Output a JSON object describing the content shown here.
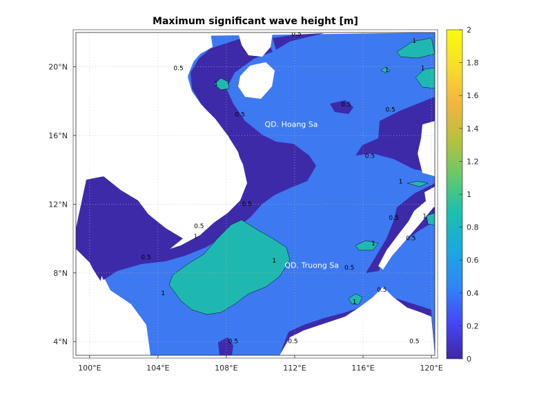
{
  "chart_data": {
    "type": "heatmap",
    "title": "Maximum significant wave height [m]",
    "xlabel": "",
    "ylabel": "",
    "xlim": [
      99.2,
      120.2
    ],
    "ylim": [
      3.2,
      22.0
    ],
    "x_ticks": [
      {
        "value": 100,
        "label": "100°E"
      },
      {
        "value": 104,
        "label": "104°E"
      },
      {
        "value": 108,
        "label": "108°E"
      },
      {
        "value": 112,
        "label": "112°E"
      },
      {
        "value": 116,
        "label": "116°E"
      },
      {
        "value": 120,
        "label": "120°E"
      }
    ],
    "y_ticks": [
      {
        "value": 4,
        "label": "4°N"
      },
      {
        "value": 8,
        "label": "8°N"
      },
      {
        "value": 12,
        "label": "12°N"
      },
      {
        "value": 16,
        "label": "16°N"
      },
      {
        "value": 20,
        "label": "20°N"
      }
    ],
    "grid": true,
    "colorbar": {
      "range": [
        0,
        2
      ],
      "ticks": [
        "0",
        "0.2",
        "0.4",
        "0.6",
        "0.8",
        "1",
        "1.2",
        "1.4",
        "1.6",
        "1.8",
        "2"
      ],
      "colors": [
        "#3e26a8",
        "#4547f9",
        "#2e87f7",
        "#1aa9df",
        "#1bbfae",
        "#65c96a",
        "#b8c13d",
        "#f3b53f",
        "#f9dd29",
        "#f9fb0e"
      ]
    },
    "levels": [
      {
        "range": "0-0.5",
        "color": "#3d2aa9"
      },
      {
        "range": "0.5-1",
        "color": "#3d79f0"
      },
      {
        "range": "1-1.5",
        "color": "#1fb8b0"
      }
    ],
    "annotations": [
      {
        "text": "QD. Hoang Sa",
        "lon": 111.8,
        "lat": 16.5
      },
      {
        "text": "QD. Truong Sa",
        "lon": 113.0,
        "lat": 8.3
      }
    ],
    "contour_labels": [
      {
        "text": "0.5",
        "lon": 112.1,
        "lat": 21.8
      },
      {
        "text": "1",
        "lon": 119.0,
        "lat": 21.4
      },
      {
        "text": "0.5",
        "lon": 105.2,
        "lat": 19.8
      },
      {
        "text": "1",
        "lon": 107.4,
        "lat": 18.9
      },
      {
        "text": "1",
        "lon": 117.4,
        "lat": 19.7
      },
      {
        "text": "1",
        "lon": 119.5,
        "lat": 19.8
      },
      {
        "text": "0.5",
        "lon": 108.8,
        "lat": 17.1
      },
      {
        "text": "0.5",
        "lon": 115.0,
        "lat": 17.7
      },
      {
        "text": "0.5",
        "lon": 117.6,
        "lat": 17.4
      },
      {
        "text": "0.5",
        "lon": 116.4,
        "lat": 14.7
      },
      {
        "text": "1",
        "lon": 118.2,
        "lat": 13.2
      },
      {
        "text": "0.5",
        "lon": 109.2,
        "lat": 11.9
      },
      {
        "text": "0.5",
        "lon": 106.4,
        "lat": 10.6
      },
      {
        "text": "1",
        "lon": 106.2,
        "lat": 10.0
      },
      {
        "text": "0.5",
        "lon": 117.8,
        "lat": 11.1
      },
      {
        "text": "1",
        "lon": 119.6,
        "lat": 11.2
      },
      {
        "text": "0.5",
        "lon": 118.8,
        "lat": 9.9
      },
      {
        "text": "0.5",
        "lon": 103.3,
        "lat": 8.8
      },
      {
        "text": "1",
        "lon": 110.8,
        "lat": 8.6
      },
      {
        "text": "1",
        "lon": 116.6,
        "lat": 9.6
      },
      {
        "text": "0.5",
        "lon": 115.2,
        "lat": 8.2
      },
      {
        "text": "0.5",
        "lon": 117.1,
        "lat": 6.9
      },
      {
        "text": "1",
        "lon": 104.3,
        "lat": 6.7
      },
      {
        "text": "1",
        "lon": 115.5,
        "lat": 6.2
      },
      {
        "text": "0.5",
        "lon": 111.9,
        "lat": 3.9
      },
      {
        "text": "0.5",
        "lon": 108.4,
        "lat": 3.9
      },
      {
        "text": "0.5",
        "lon": 119.0,
        "lat": 3.9
      }
    ]
  }
}
